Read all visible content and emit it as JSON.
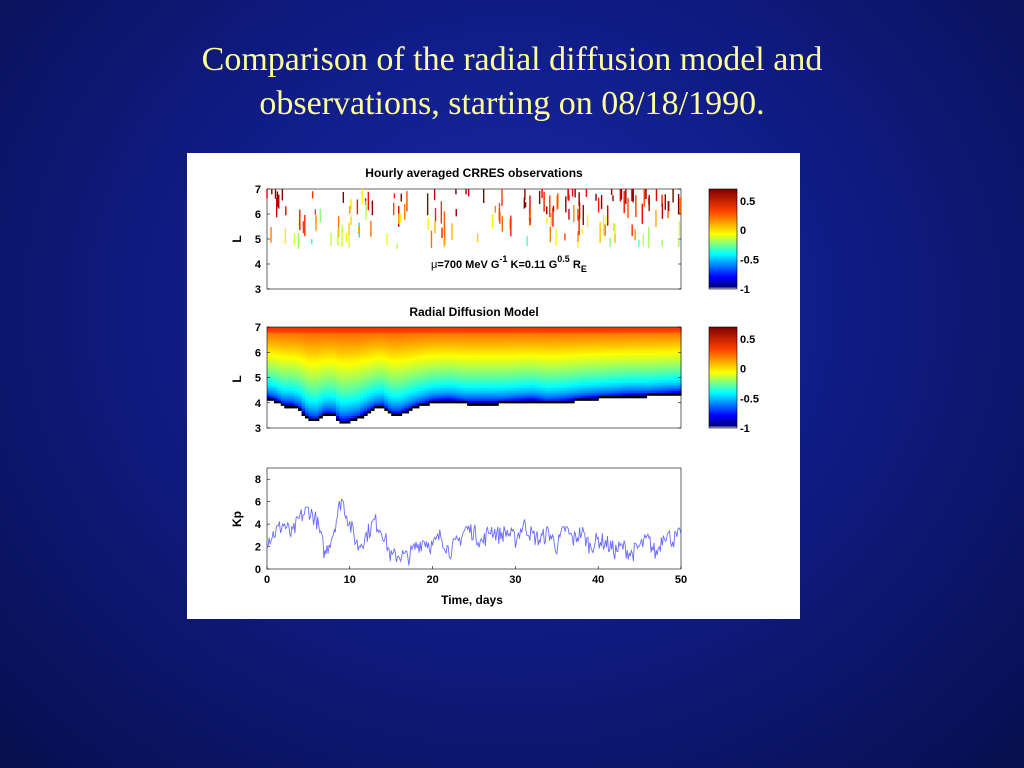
{
  "slide": {
    "title_line1": "Comparison of the radial diffusion model and",
    "title_line2": "observations, starting on 08/18/1990."
  },
  "colors": {
    "background": "#101c86",
    "title": "#ffff99",
    "kp_line": "#6b6bff"
  },
  "chart_data": [
    {
      "type": "heatmap",
      "title": "Hourly averaged CRRES observations",
      "ylabel": "L",
      "y_ticks": [
        "3",
        "4",
        "5",
        "6",
        "7"
      ],
      "ylim": [
        3,
        7
      ],
      "xlim": [
        0,
        50
      ],
      "annotation": {
        "mu_symbol": "μ",
        "mu_text": "=700 MeV G",
        "mu_exp": "-1",
        "k_text": "K=0.11 G",
        "k_exp": "0.5",
        "r_text": "R",
        "r_sub": "E"
      },
      "colorbar": {
        "ticks": [
          "0.5",
          "0",
          "-0.5",
          "-1"
        ],
        "range": [
          -1,
          0.7
        ]
      }
    },
    {
      "type": "heatmap",
      "title": "Radial Diffusion Model",
      "ylabel": "L",
      "y_ticks": [
        "3",
        "4",
        "5",
        "6",
        "7"
      ],
      "ylim": [
        3,
        7
      ],
      "xlim": [
        0,
        50
      ],
      "colorbar": {
        "ticks": [
          "0.5",
          "0",
          "-0.5",
          "-1"
        ],
        "range": [
          -1,
          0.7
        ]
      },
      "inner_boundary_L": [
        [
          0,
          4.2
        ],
        [
          1,
          4.1
        ],
        [
          2,
          3.9
        ],
        [
          3,
          3.9
        ],
        [
          4,
          3.75
        ],
        [
          5,
          3.35
        ],
        [
          6,
          3.3
        ],
        [
          7,
          3.55
        ],
        [
          8,
          3.55
        ],
        [
          9,
          3.25
        ],
        [
          10,
          3.3
        ],
        [
          11,
          3.4
        ],
        [
          12,
          3.6
        ],
        [
          13,
          3.8
        ],
        [
          14,
          3.85
        ],
        [
          15,
          3.55
        ],
        [
          16,
          3.55
        ],
        [
          17,
          3.7
        ],
        [
          18,
          3.85
        ],
        [
          19,
          3.95
        ],
        [
          20,
          4.05
        ],
        [
          22,
          4.1
        ],
        [
          24,
          4.0
        ],
        [
          26,
          4.0
        ],
        [
          28,
          4.0
        ],
        [
          30,
          4.05
        ],
        [
          32,
          4.1
        ],
        [
          34,
          4.0
        ],
        [
          36,
          4.05
        ],
        [
          38,
          4.15
        ],
        [
          40,
          4.2
        ],
        [
          42,
          4.25
        ],
        [
          44,
          4.3
        ],
        [
          46,
          4.3
        ],
        [
          48,
          4.35
        ],
        [
          50,
          4.4
        ]
      ]
    },
    {
      "type": "line",
      "ylabel": "Kp",
      "xlabel": "Time, days",
      "x_ticks": [
        "0",
        "10",
        "20",
        "30",
        "40",
        "50"
      ],
      "y_ticks": [
        "0",
        "2",
        "4",
        "6",
        "8"
      ],
      "xlim": [
        0,
        50
      ],
      "ylim": [
        0,
        9
      ],
      "series": [
        {
          "x": [
            0,
            1,
            2,
            3,
            4,
            5,
            6,
            7,
            8,
            9,
            10,
            11,
            12,
            13,
            14,
            15,
            16,
            17,
            18,
            19,
            20,
            21,
            22,
            23,
            24,
            25,
            26,
            27,
            28,
            29,
            30,
            31,
            32,
            33,
            34,
            35,
            36,
            37,
            38,
            39,
            40,
            41,
            42,
            43,
            44,
            45,
            46,
            47,
            48,
            49,
            50
          ],
          "values": [
            2.6,
            3.3,
            4.0,
            3.0,
            4.6,
            5.3,
            4.3,
            1.3,
            3.3,
            6.3,
            4.0,
            2.0,
            3.0,
            4.3,
            3.3,
            1.0,
            1.3,
            1.0,
            2.0,
            2.6,
            2.0,
            3.0,
            1.6,
            2.3,
            3.6,
            3.3,
            2.3,
            3.6,
            3.0,
            3.3,
            2.6,
            4.0,
            3.0,
            2.6,
            3.3,
            2.0,
            3.6,
            2.6,
            3.3,
            2.0,
            2.6,
            2.3,
            1.6,
            2.0,
            1.3,
            2.0,
            2.6,
            1.3,
            3.3,
            2.6,
            3.0
          ]
        }
      ]
    }
  ]
}
